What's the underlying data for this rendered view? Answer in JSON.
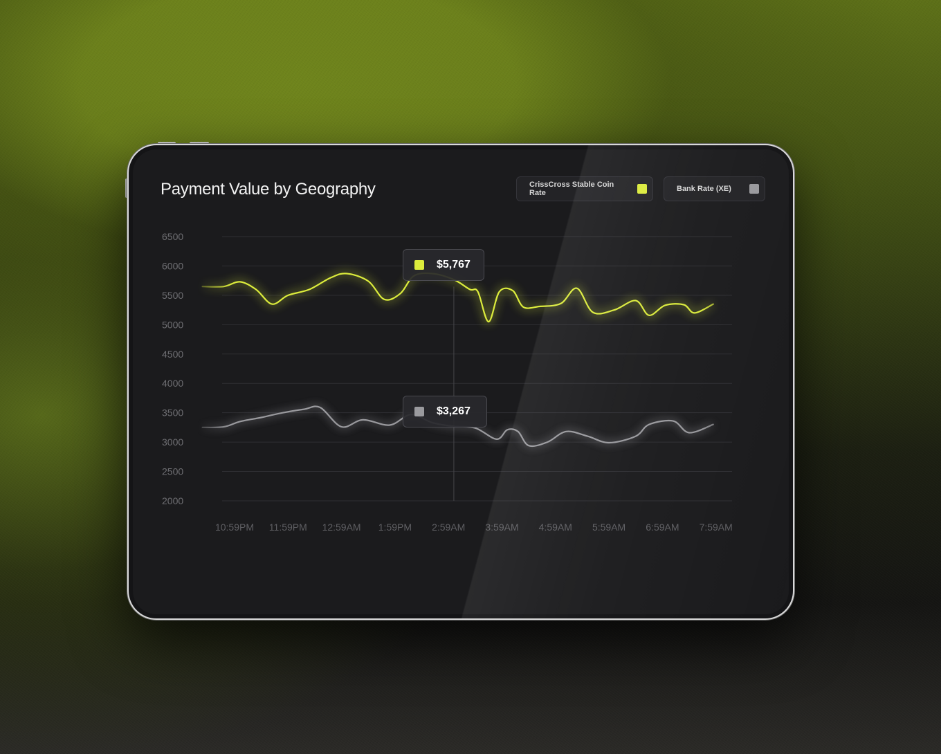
{
  "page": {
    "title": "Payment Value by Geography"
  },
  "legend": [
    {
      "label": "CrissCross Stable Coin Rate",
      "color": "#dcec3c"
    },
    {
      "label": "Bank Rate (XE)",
      "color": "#9a9a9e"
    }
  ],
  "tooltips": [
    {
      "value": "$5,767",
      "color": "#dcec3c"
    },
    {
      "value": "$3,267",
      "color": "#9a9a9e"
    }
  ],
  "chart_data": {
    "type": "line",
    "title": "Payment Value by Geography",
    "xlabel": "",
    "ylabel": "",
    "ylim": [
      2000,
      6500
    ],
    "yticks": [
      6500,
      6000,
      5500,
      5000,
      4500,
      4000,
      3500,
      3000,
      2500,
      2000
    ],
    "grid": true,
    "legend_position": "top-right",
    "x_tick_labels": [
      "10:59PM",
      "11:59PM",
      "12:59AM",
      "1:59PM",
      "2:59AM",
      "3:59AM",
      "4:59AM",
      "5:59AM",
      "6:59AM",
      "7:59AM"
    ],
    "highlight": {
      "x": 4.1,
      "labels": [
        "$5,767",
        "$3,267"
      ]
    },
    "series": [
      {
        "name": "CrissCross Stable Coin Rate",
        "color": "#dcec3c",
        "points": [
          [
            -0.6,
            5650
          ],
          [
            -0.2,
            5650
          ],
          [
            0.1,
            5730
          ],
          [
            0.4,
            5600
          ],
          [
            0.7,
            5350
          ],
          [
            1.0,
            5500
          ],
          [
            1.4,
            5600
          ],
          [
            1.8,
            5800
          ],
          [
            2.1,
            5870
          ],
          [
            2.5,
            5740
          ],
          [
            2.8,
            5430
          ],
          [
            3.1,
            5530
          ],
          [
            3.35,
            5830
          ],
          [
            3.7,
            5870
          ],
          [
            4.1,
            5767
          ],
          [
            4.4,
            5600
          ],
          [
            4.55,
            5560
          ],
          [
            4.75,
            5050
          ],
          [
            4.95,
            5560
          ],
          [
            5.2,
            5580
          ],
          [
            5.4,
            5300
          ],
          [
            5.7,
            5310
          ],
          [
            6.1,
            5360
          ],
          [
            6.4,
            5620
          ],
          [
            6.7,
            5210
          ],
          [
            7.1,
            5250
          ],
          [
            7.5,
            5410
          ],
          [
            7.75,
            5160
          ],
          [
            8.05,
            5330
          ],
          [
            8.4,
            5340
          ],
          [
            8.6,
            5200
          ],
          [
            8.95,
            5350
          ]
        ]
      },
      {
        "name": "Bank Rate (XE)",
        "color": "#9a9a9e",
        "points": [
          [
            -0.6,
            3250
          ],
          [
            -0.2,
            3260
          ],
          [
            0.1,
            3350
          ],
          [
            0.5,
            3420
          ],
          [
            0.9,
            3500
          ],
          [
            1.3,
            3560
          ],
          [
            1.6,
            3590
          ],
          [
            2.0,
            3260
          ],
          [
            2.4,
            3380
          ],
          [
            2.9,
            3290
          ],
          [
            3.3,
            3470
          ],
          [
            3.7,
            3330
          ],
          [
            4.1,
            3267
          ],
          [
            4.5,
            3240
          ],
          [
            4.9,
            3050
          ],
          [
            5.1,
            3210
          ],
          [
            5.3,
            3180
          ],
          [
            5.5,
            2940
          ],
          [
            5.85,
            3000
          ],
          [
            6.2,
            3180
          ],
          [
            6.6,
            3100
          ],
          [
            7.0,
            2990
          ],
          [
            7.5,
            3100
          ],
          [
            7.75,
            3300
          ],
          [
            8.2,
            3360
          ],
          [
            8.5,
            3160
          ],
          [
            8.95,
            3300
          ]
        ]
      }
    ]
  }
}
